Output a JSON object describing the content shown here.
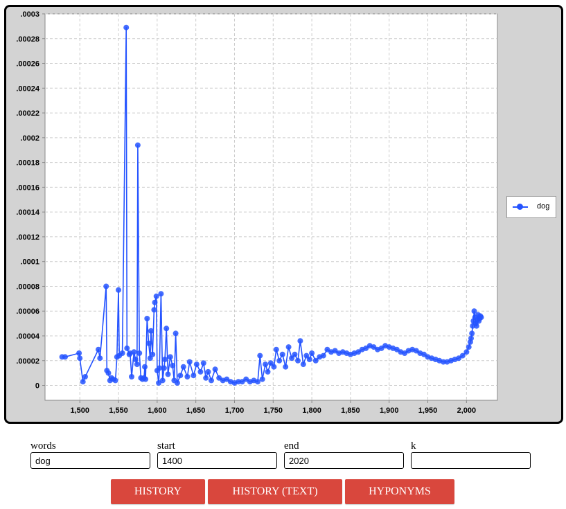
{
  "chart_data": {
    "type": "line",
    "title": "",
    "xlabel": "",
    "ylabel": "",
    "xlim": [
      1455,
      2040
    ],
    "ylim": [
      -1.2e-05,
      0.0003
    ],
    "x_ticks": [
      1500,
      1550,
      1600,
      1650,
      1700,
      1750,
      1800,
      1850,
      1900,
      1950,
      2000
    ],
    "x_tick_labels": [
      "1,500",
      "1,550",
      "1,600",
      "1,650",
      "1,700",
      "1,750",
      "1,800",
      "1,850",
      "1,900",
      "1,950",
      "2,000"
    ],
    "y_ticks": [
      0,
      2e-05,
      4e-05,
      6e-05,
      8e-05,
      0.0001,
      0.00012,
      0.00014,
      0.00016,
      0.00018,
      0.0002,
      0.00022,
      0.00024,
      0.00026,
      0.00028,
      0.0003
    ],
    "y_tick_labels": [
      "0",
      ".00002",
      ".00004",
      ".00006",
      ".00008",
      ".0001",
      ".00012",
      ".00014",
      ".00016",
      ".00018",
      ".0002",
      ".00022",
      ".00024",
      ".00026",
      ".00028",
      ".0003"
    ],
    "grid": true,
    "legend_position": "right",
    "series": [
      {
        "name": "dog",
        "color": "#2453ff",
        "x": [
          1477,
          1481,
          1499,
          1500,
          1504,
          1507,
          1524,
          1526,
          1534,
          1535,
          1537,
          1539,
          1541,
          1543,
          1546,
          1548,
          1550,
          1551,
          1555,
          1560,
          1561,
          1564,
          1565,
          1567,
          1570,
          1572,
          1574,
          1575,
          1577,
          1579,
          1581,
          1583,
          1584,
          1585,
          1587,
          1589,
          1591,
          1592,
          1594,
          1596,
          1597,
          1599,
          1600,
          1602,
          1603,
          1605,
          1607,
          1609,
          1610,
          1612,
          1614,
          1617,
          1620,
          1622,
          1624,
          1626,
          1630,
          1634,
          1639,
          1642,
          1647,
          1651,
          1656,
          1660,
          1663,
          1666,
          1670,
          1675,
          1680,
          1685,
          1690,
          1695,
          1700,
          1705,
          1710,
          1715,
          1720,
          1725,
          1730,
          1733,
          1736,
          1740,
          1743,
          1747,
          1751,
          1754,
          1758,
          1762,
          1766,
          1770,
          1774,
          1778,
          1782,
          1785,
          1789,
          1793,
          1797,
          1800,
          1805,
          1810,
          1815,
          1820,
          1825,
          1830,
          1835,
          1840,
          1845,
          1850,
          1855,
          1860,
          1865,
          1870,
          1875,
          1880,
          1885,
          1890,
          1895,
          1900,
          1905,
          1910,
          1915,
          1920,
          1925,
          1930,
          1935,
          1940,
          1945,
          1950,
          1955,
          1960,
          1965,
          1970,
          1975,
          1980,
          1985,
          1990,
          1995,
          2000,
          2003,
          2005,
          2006,
          2007,
          2008,
          2009,
          2010,
          2011,
          2012,
          2013,
          2014,
          2015,
          2016,
          2017,
          2018,
          2019
        ],
        "y": [
          2.3e-05,
          2.3e-05,
          2.6e-05,
          2.2e-05,
          3e-06,
          7e-06,
          2.9e-05,
          2.2e-05,
          8e-05,
          1.2e-05,
          1e-05,
          4e-06,
          6e-06,
          5e-06,
          4e-06,
          2.3e-05,
          7.7e-05,
          2.4e-05,
          2.6e-05,
          0.000289,
          3e-05,
          2.5e-05,
          2.6e-05,
          7e-06,
          2.7e-05,
          2.1e-05,
          1.7e-05,
          0.000194,
          2.6e-05,
          6e-06,
          5e-06,
          6e-06,
          1.5e-05,
          5e-06,
          5.4e-05,
          3.4e-05,
          2.2e-05,
          4.4e-05,
          2.5e-05,
          6.1e-05,
          6.7e-05,
          7.2e-05,
          1.2e-05,
          2e-06,
          1.4e-05,
          7.4e-05,
          4e-06,
          1.4e-05,
          2.1e-05,
          4.6e-05,
          9e-06,
          2.3e-05,
          1.6e-05,
          4e-06,
          4.2e-05,
          2e-06,
          8e-06,
          1.5e-05,
          7e-06,
          1.9e-05,
          8e-06,
          1.7e-05,
          1.1e-05,
          1.8e-05,
          6e-06,
          1.1e-05,
          4e-06,
          1.3e-05,
          6e-06,
          4e-06,
          5e-06,
          3e-06,
          2e-06,
          3e-06,
          3e-06,
          5e-06,
          3e-06,
          4e-06,
          3e-06,
          2.4e-05,
          5e-06,
          1.7e-05,
          1.1e-05,
          1.8e-05,
          1.5e-05,
          2.9e-05,
          2e-05,
          2.5e-05,
          1.5e-05,
          3.1e-05,
          2.2e-05,
          2.5e-05,
          2e-05,
          3.6e-05,
          1.7e-05,
          2.4e-05,
          2.1e-05,
          2.6e-05,
          2e-05,
          2.3e-05,
          2.4e-05,
          2.9e-05,
          2.7e-05,
          2.8e-05,
          2.6e-05,
          2.7e-05,
          2.6e-05,
          2.5e-05,
          2.6e-05,
          2.7e-05,
          2.9e-05,
          3e-05,
          3.2e-05,
          3.1e-05,
          2.9e-05,
          3e-05,
          3.2e-05,
          3.1e-05,
          3e-05,
          2.9e-05,
          2.7e-05,
          2.6e-05,
          2.8e-05,
          2.9e-05,
          2.8e-05,
          2.6e-05,
          2.5e-05,
          2.3e-05,
          2.2e-05,
          2.1e-05,
          2e-05,
          1.9e-05,
          1.9e-05,
          2e-05,
          2.1e-05,
          2.2e-05,
          2.4e-05,
          2.7e-05,
          3.1e-05,
          3.5e-05,
          3.8e-05,
          4.2e-05,
          4.8e-05,
          5.2e-05,
          6e-05,
          5.5e-05,
          5e-05,
          4.8e-05,
          5.3e-05,
          5.7e-05,
          5.2e-05,
          5.4e-05,
          5.6e-05,
          5.5e-05
        ]
      }
    ]
  },
  "form": {
    "words_label": "words",
    "words_value": "dog",
    "start_label": "start",
    "start_value": "1400",
    "end_label": "end",
    "end_value": "2020",
    "k_label": "k",
    "k_value": ""
  },
  "buttons": {
    "history": "HISTORY",
    "history_text": "HISTORY (TEXT)",
    "hyponyms": "HYPONYMS"
  },
  "colors": {
    "frame_bg": "#d3d3d3",
    "series": "#2453ff",
    "button_bg": "#d9473d"
  }
}
